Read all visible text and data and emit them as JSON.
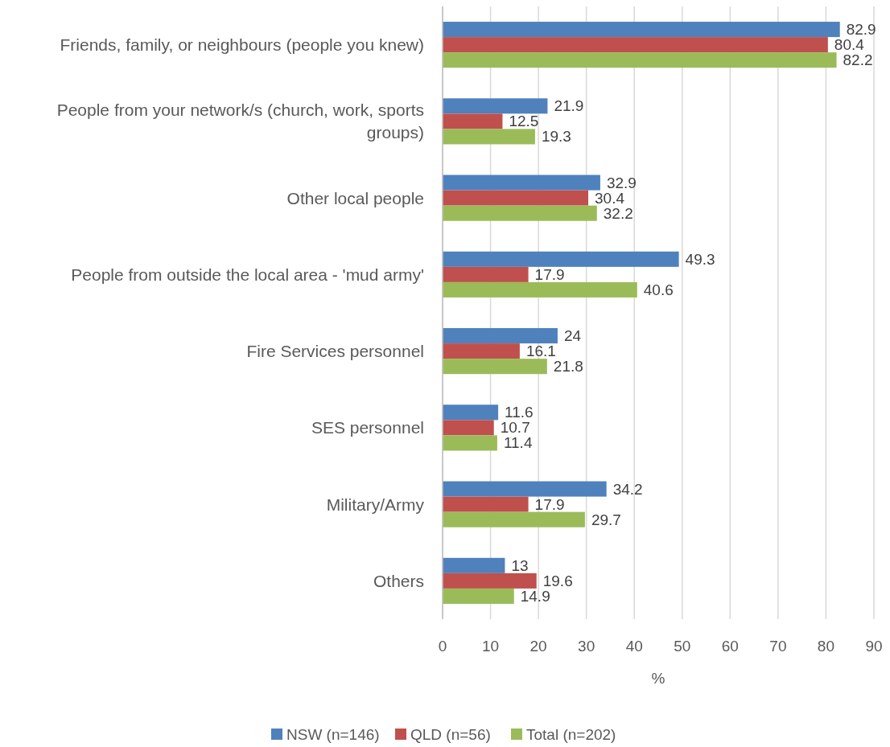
{
  "chart_data": {
    "type": "bar",
    "orientation": "horizontal",
    "xlabel": "%",
    "categories": [
      "Friends, family, or neighbours (people you knew)",
      "People from your network/s (church, work, sports groups)",
      "Other local people",
      "People from outside the local area - 'mud army'",
      "Fire Services personnel",
      "SES personnel",
      "Military/Army",
      "Others"
    ],
    "series": [
      {
        "name": "NSW (n=146)",
        "color": "#4f81bd",
        "values": [
          82.9,
          21.9,
          32.9,
          49.3,
          24,
          11.6,
          34.2,
          13
        ]
      },
      {
        "name": "QLD (n=56)",
        "color": "#c0504d",
        "values": [
          80.4,
          12.5,
          30.4,
          17.9,
          16.1,
          10.7,
          17.9,
          19.6
        ]
      },
      {
        "name": "Total (n=202)",
        "color": "#9bbb59",
        "values": [
          82.2,
          19.3,
          32.2,
          40.6,
          21.8,
          11.4,
          29.7,
          14.9
        ]
      }
    ],
    "xlim": [
      0,
      90
    ],
    "xticks": [
      0,
      10,
      20,
      30,
      40,
      50,
      60,
      70,
      80,
      90
    ],
    "grid": "x",
    "data_labels": true,
    "legend": "bottom"
  }
}
